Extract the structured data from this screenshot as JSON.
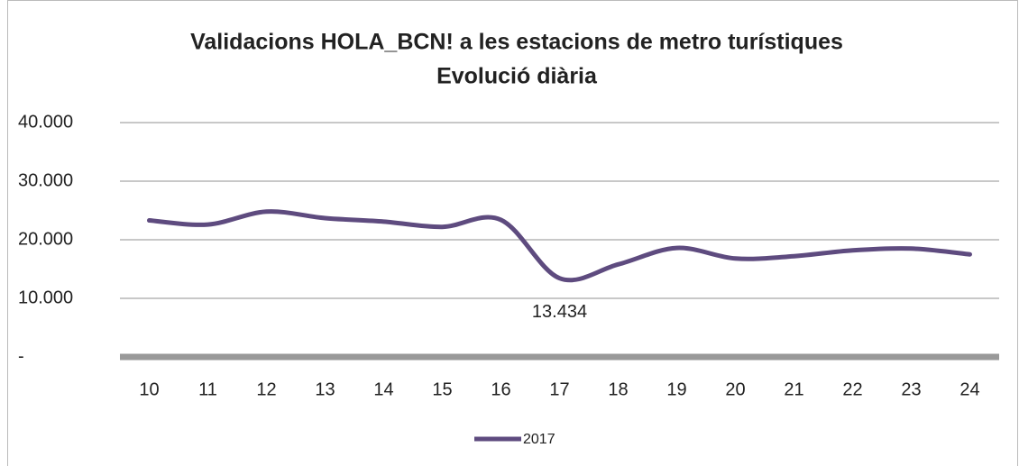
{
  "chart_data": {
    "type": "line",
    "title": "Validacions HOLA_BCN! a les estacions de metro turístiques",
    "subtitle": "Evolució diària",
    "categories": [
      "10",
      "11",
      "12",
      "13",
      "14",
      "15",
      "16",
      "17",
      "18",
      "19",
      "20",
      "21",
      "22",
      "23",
      "24"
    ],
    "series": [
      {
        "name": "2017",
        "color": "#5e4b7f",
        "values": [
          23300,
          22600,
          24800,
          23700,
          23100,
          22200,
          23400,
          13434,
          15800,
          18600,
          16800,
          17200,
          18200,
          18500,
          17500
        ],
        "value_labels": [
          null,
          null,
          null,
          null,
          null,
          null,
          null,
          "13.434",
          null,
          null,
          null,
          null,
          null,
          null,
          null
        ]
      }
    ],
    "ylim": [
      0,
      40000
    ],
    "yticks": [
      {
        "value": 0,
        "label": "-"
      },
      {
        "value": 10000,
        "label": "10.000"
      },
      {
        "value": 20000,
        "label": "20.000"
      },
      {
        "value": 30000,
        "label": "30.000"
      },
      {
        "value": 40000,
        "label": "40.000"
      }
    ],
    "grid": true,
    "legend": "bottom"
  }
}
